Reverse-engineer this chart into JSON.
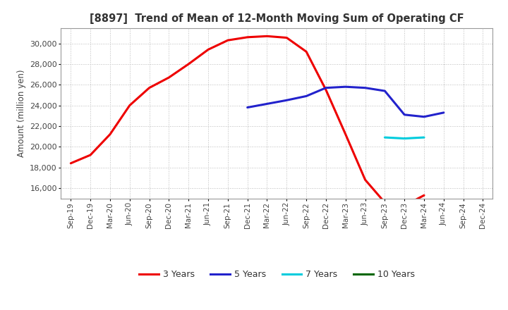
{
  "title": "[8897]  Trend of Mean of 12-Month Moving Sum of Operating CF",
  "ylabel": "Amount (million yen)",
  "ylim": [
    15000,
    31500
  ],
  "yticks": [
    16000,
    18000,
    20000,
    22000,
    24000,
    26000,
    28000,
    30000
  ],
  "background_color": "#ffffff",
  "plot_bg_color": "#ffffff",
  "grid_color": "#bbbbbb",
  "x_labels": [
    "Sep-19",
    "Dec-19",
    "Mar-20",
    "Jun-20",
    "Sep-20",
    "Dec-20",
    "Mar-21",
    "Jun-21",
    "Sep-21",
    "Dec-21",
    "Mar-22",
    "Jun-22",
    "Sep-22",
    "Dec-22",
    "Mar-23",
    "Jun-23",
    "Sep-23",
    "Dec-23",
    "Mar-24",
    "Jun-24",
    "Sep-24",
    "Dec-24"
  ],
  "series": {
    "3yr": {
      "color": "#ee0000",
      "label": "3 Years",
      "values": [
        18400,
        19200,
        21200,
        24000,
        25700,
        26700,
        28000,
        29400,
        30300,
        30600,
        30700,
        30550,
        29200,
        25500,
        21200,
        16800,
        14600,
        14300,
        15300,
        null,
        null,
        null
      ]
    },
    "5yr": {
      "color": "#2222cc",
      "label": "5 Years",
      "values": [
        null,
        null,
        null,
        null,
        null,
        null,
        null,
        null,
        null,
        23800,
        24150,
        24500,
        24900,
        25700,
        25800,
        25700,
        25400,
        23100,
        22900,
        23300,
        null,
        null
      ]
    },
    "7yr": {
      "color": "#00ccdd",
      "label": "7 Years",
      "values": [
        null,
        null,
        null,
        null,
        null,
        null,
        null,
        null,
        null,
        null,
        null,
        null,
        null,
        null,
        null,
        null,
        20900,
        20800,
        20900,
        null,
        null,
        null
      ]
    },
    "10yr": {
      "color": "#006600",
      "label": "10 Years",
      "values": [
        null,
        null,
        null,
        null,
        null,
        null,
        null,
        null,
        null,
        null,
        null,
        null,
        null,
        null,
        null,
        null,
        null,
        null,
        null,
        null,
        null,
        null
      ]
    }
  },
  "legend_labels": [
    "3 Years",
    "5 Years",
    "7 Years",
    "10 Years"
  ],
  "legend_colors": [
    "#ee0000",
    "#2222cc",
    "#00ccdd",
    "#006600"
  ]
}
